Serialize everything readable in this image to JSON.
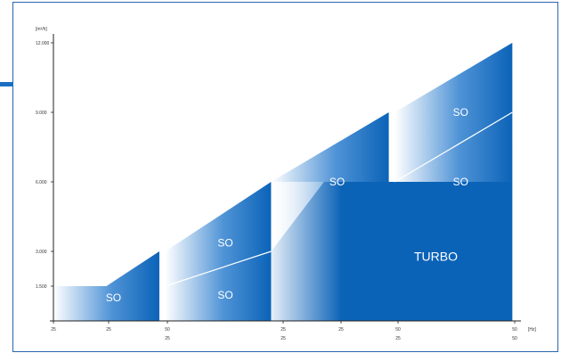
{
  "colors": {
    "frame_border": "#2a66b0",
    "accent_bar": "#1a6fc4",
    "blue_dark": "#0b63b8",
    "blue_light": "#ffffff",
    "axis": "#222222"
  },
  "chart_data": {
    "type": "area",
    "title": "",
    "ylabel": "[m³/h]",
    "xlabel": "[Hz]",
    "ylim": [
      0,
      12000
    ],
    "y_ticks": [
      {
        "value": 1500,
        "label": "1.500"
      },
      {
        "value": 3000,
        "label": "3.000"
      },
      {
        "value": 6000,
        "label": "6.000"
      },
      {
        "value": 9000,
        "label": "9.000"
      },
      {
        "value": 12000,
        "label": "12.000"
      }
    ],
    "x_ticks_row1": [
      "25",
      "25",
      "50",
      "25",
      "25",
      "50",
      "50"
    ],
    "x_ticks_row2": [
      "25",
      "25",
      "50",
      "25",
      "25",
      "50"
    ],
    "regions": [
      {
        "label": "SO",
        "x": [
          0,
          0.45,
          0.9
        ],
        "y_top": [
          1500,
          1500,
          3000
        ],
        "y_bottom": [
          0,
          0,
          0
        ]
      },
      {
        "label": "SO",
        "x": [
          0.95,
          1.85
        ],
        "y_top": [
          3000,
          6000
        ],
        "y_bottom": [
          1500,
          3000
        ]
      },
      {
        "label": "SO",
        "x": [
          0.95,
          1.85
        ],
        "y_top": [
          1500,
          3000
        ],
        "y_bottom": [
          0,
          0
        ]
      },
      {
        "label": "SO",
        "x": [
          1.85,
          2.85
        ],
        "y_top": [
          6000,
          9000
        ],
        "y_bottom": [
          3000,
          6000
        ]
      },
      {
        "label": "SO",
        "x": [
          2.9,
          3.9
        ],
        "y_top": [
          9000,
          12000
        ],
        "y_bottom": [
          6000,
          9000
        ]
      },
      {
        "label": "SO",
        "x": [
          2.9,
          3.9
        ],
        "y_top": [
          6000,
          9000
        ],
        "y_bottom": [
          3000,
          6000
        ]
      },
      {
        "label": "TURBO",
        "x": [
          1.85,
          2.3,
          3.9
        ],
        "y_top": [
          3000,
          6000,
          6000
        ],
        "y_bottom": [
          0,
          0,
          0
        ]
      }
    ]
  }
}
